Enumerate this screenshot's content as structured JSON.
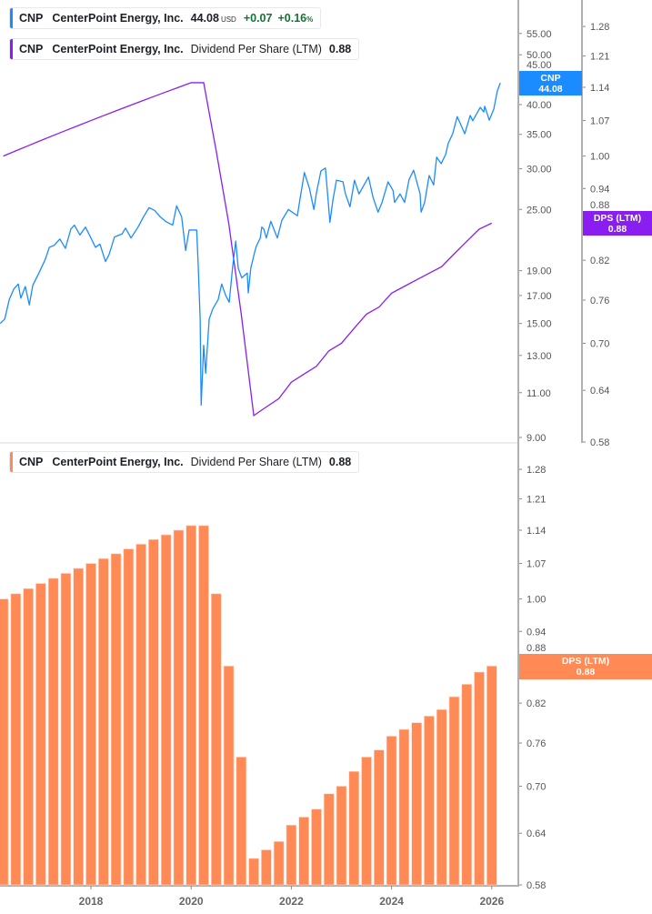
{
  "legends": {
    "price": {
      "ticker": "CNP",
      "name": "CenterPoint Energy, Inc.",
      "price": "44.08",
      "currency": "USD",
      "change": "+0.07",
      "change_pct": "+0.16",
      "pct_sign": "%",
      "color": "#1a8cff"
    },
    "dps_top": {
      "ticker": "CNP",
      "name": "CenterPoint Energy, Inc.",
      "metric": "Dividend Per Share (LTM)",
      "value": "0.88",
      "color": "#8a1ef0"
    },
    "dps_bottom": {
      "ticker": "CNP",
      "name": "CenterPoint Energy, Inc.",
      "metric": "Dividend Per Share (LTM)",
      "value": "0.88",
      "color": "#ff8a55"
    }
  },
  "tags": {
    "price": {
      "label": "CNP",
      "value": "44.08",
      "color": "#1a8cff"
    },
    "dps_top": {
      "label": "DPS (LTM)",
      "value": "0.88",
      "color": "#8a1ef0"
    },
    "dps_bottom": {
      "label": "DPS (LTM)",
      "value": "0.88",
      "color": "#ff8a55"
    }
  },
  "chart_data": [
    {
      "type": "line",
      "scale": "log",
      "series": [
        {
          "name": "CNP",
          "color": "#1a8cff",
          "points": [
            [
              2016.19,
              15.0
            ],
            [
              2016.28,
              15.3
            ],
            [
              2016.37,
              16.7
            ],
            [
              2016.46,
              17.5
            ],
            [
              2016.55,
              17.9
            ],
            [
              2016.6,
              16.8
            ],
            [
              2016.69,
              17.7
            ],
            [
              2016.77,
              16.3
            ],
            [
              2016.84,
              17.8
            ],
            [
              2016.95,
              18.7
            ],
            [
              2017.09,
              20.0
            ],
            [
              2017.17,
              21.1
            ],
            [
              2017.27,
              21.3
            ],
            [
              2017.38,
              21.9
            ],
            [
              2017.49,
              21.0
            ],
            [
              2017.6,
              22.9
            ],
            [
              2017.67,
              23.3
            ],
            [
              2017.78,
              22.3
            ],
            [
              2017.89,
              23.1
            ],
            [
              2018.0,
              22.0
            ],
            [
              2018.09,
              21.1
            ],
            [
              2018.18,
              21.4
            ],
            [
              2018.29,
              19.8
            ],
            [
              2018.36,
              20.4
            ],
            [
              2018.47,
              22.1
            ],
            [
              2018.62,
              22.4
            ],
            [
              2018.69,
              23.0
            ],
            [
              2018.8,
              22.0
            ],
            [
              2018.94,
              23.1
            ],
            [
              2019.05,
              24.2
            ],
            [
              2019.16,
              25.2
            ],
            [
              2019.27,
              24.9
            ],
            [
              2019.38,
              24.2
            ],
            [
              2019.49,
              23.7
            ],
            [
              2019.63,
              23.3
            ],
            [
              2019.71,
              25.4
            ],
            [
              2019.81,
              24.2
            ],
            [
              2019.89,
              20.8
            ],
            [
              2019.96,
              22.8
            ],
            [
              2020.11,
              22.8
            ],
            [
              2020.14,
              19.6
            ],
            [
              2020.18,
              15.3
            ],
            [
              2020.2,
              10.4
            ],
            [
              2020.25,
              13.6
            ],
            [
              2020.29,
              12.0
            ],
            [
              2020.36,
              15.3
            ],
            [
              2020.43,
              16.0
            ],
            [
              2020.54,
              16.7
            ],
            [
              2020.61,
              17.9
            ],
            [
              2020.69,
              17.0
            ],
            [
              2020.76,
              16.5
            ],
            [
              2020.83,
              19.4
            ],
            [
              2020.89,
              21.7
            ],
            [
              2020.94,
              19.2
            ],
            [
              2021.01,
              18.4
            ],
            [
              2021.12,
              18.8
            ],
            [
              2021.14,
              17.2
            ],
            [
              2021.19,
              19.2
            ],
            [
              2021.27,
              20.7
            ],
            [
              2021.3,
              21.2
            ],
            [
              2021.38,
              22.0
            ],
            [
              2021.41,
              23.1
            ],
            [
              2021.45,
              22.9
            ],
            [
              2021.5,
              22.0
            ],
            [
              2021.59,
              23.7
            ],
            [
              2021.72,
              22.0
            ],
            [
              2021.81,
              23.8
            ],
            [
              2021.94,
              25.0
            ],
            [
              2022.12,
              24.3
            ],
            [
              2022.17,
              26.1
            ],
            [
              2022.26,
              29.5
            ],
            [
              2022.36,
              27.5
            ],
            [
              2022.45,
              25.0
            ],
            [
              2022.5,
              26.9
            ],
            [
              2022.59,
              29.7
            ],
            [
              2022.68,
              30.1
            ],
            [
              2022.77,
              23.6
            ],
            [
              2022.83,
              26.1
            ],
            [
              2022.9,
              28.5
            ],
            [
              2023.03,
              28.3
            ],
            [
              2023.08,
              26.8
            ],
            [
              2023.17,
              25.3
            ],
            [
              2023.26,
              28.5
            ],
            [
              2023.35,
              26.8
            ],
            [
              2023.54,
              28.9
            ],
            [
              2023.63,
              26.4
            ],
            [
              2023.73,
              24.7
            ],
            [
              2023.81,
              25.8
            ],
            [
              2023.93,
              28.3
            ],
            [
              2024.03,
              27.2
            ],
            [
              2024.06,
              25.8
            ],
            [
              2024.17,
              26.8
            ],
            [
              2024.26,
              25.8
            ],
            [
              2024.35,
              28.6
            ],
            [
              2024.44,
              29.8
            ],
            [
              2024.57,
              26.8
            ],
            [
              2024.59,
              24.7
            ],
            [
              2024.66,
              25.8
            ],
            [
              2024.75,
              29.1
            ],
            [
              2024.84,
              27.9
            ],
            [
              2024.9,
              31.6
            ],
            [
              2024.99,
              30.7
            ],
            [
              2025.08,
              32.0
            ],
            [
              2025.13,
              33.6
            ],
            [
              2025.22,
              35.1
            ],
            [
              2025.31,
              37.9
            ],
            [
              2025.39,
              36.4
            ],
            [
              2025.46,
              35.1
            ],
            [
              2025.57,
              38.1
            ],
            [
              2025.62,
              37.2
            ],
            [
              2025.77,
              39.5
            ],
            [
              2025.84,
              38.7
            ],
            [
              2025.86,
              39.7
            ],
            [
              2025.95,
              37.3
            ],
            [
              2026.04,
              39.2
            ],
            [
              2026.11,
              42.5
            ],
            [
              2026.17,
              44.08
            ]
          ]
        }
      ],
      "y_ticks": [
        "55.00",
        "50.00",
        "45.00",
        "40.00",
        "35.00",
        "30.00",
        "25.00",
        "19.00",
        "17.00",
        "15.00",
        "13.00",
        "11.00",
        "9.00"
      ],
      "ylim": [
        9,
        57
      ]
    },
    {
      "type": "line",
      "scale": "log",
      "series": [
        {
          "name": "Dividend Per Share (LTM)",
          "color": "#8a1ef0",
          "ref": "dps"
        }
      ],
      "y_ticks": [
        "1.28",
        "1.21",
        "1.14",
        "1.07",
        "1.00",
        "0.94",
        "0.88",
        "0.82",
        "0.76",
        "0.70",
        "0.64",
        "0.58"
      ],
      "ylim": [
        0.58,
        1.28
      ]
    },
    {
      "type": "bar",
      "scale": "log",
      "dates": [
        "2016-04",
        "2016-07",
        "2016-10",
        "2017-01",
        "2017-04",
        "2017-07",
        "2017-10",
        "2018-01",
        "2018-04",
        "2018-07",
        "2018-10",
        "2019-01",
        "2019-04",
        "2019-07",
        "2019-10",
        "2020-01",
        "2020-04",
        "2020-07",
        "2020-10",
        "2021-01",
        "2021-04",
        "2021-07",
        "2021-10",
        "2022-01",
        "2022-04",
        "2022-07",
        "2022-10",
        "2023-01",
        "2023-04",
        "2023-07",
        "2023-10",
        "2024-01",
        "2024-04",
        "2024-07",
        "2024-10",
        "2025-01",
        "2025-04",
        "2025-07",
        "2025-10",
        "2026-01"
      ],
      "values": [
        1.0,
        1.01,
        1.02,
        1.03,
        1.04,
        1.05,
        1.06,
        1.07,
        1.08,
        1.09,
        1.1,
        1.11,
        1.12,
        1.13,
        1.14,
        1.15,
        1.15,
        1.01,
        0.88,
        0.74,
        0.61,
        0.62,
        0.63,
        0.65,
        0.66,
        0.67,
        0.69,
        0.7,
        0.72,
        0.74,
        0.75,
        0.77,
        0.78,
        0.79,
        0.8,
        0.81,
        0.83,
        0.85,
        0.87,
        0.88
      ],
      "color": "#ff8a55",
      "y_ticks": [
        "1.28",
        "1.21",
        "1.14",
        "1.07",
        "1.00",
        "0.94",
        "0.88",
        "0.82",
        "0.76",
        "0.70",
        "0.64",
        "0.58"
      ],
      "ylim": [
        0.58,
        1.28
      ],
      "x_ticks": [
        "2018",
        "2020",
        "2022",
        "2024",
        "2026"
      ]
    }
  ]
}
